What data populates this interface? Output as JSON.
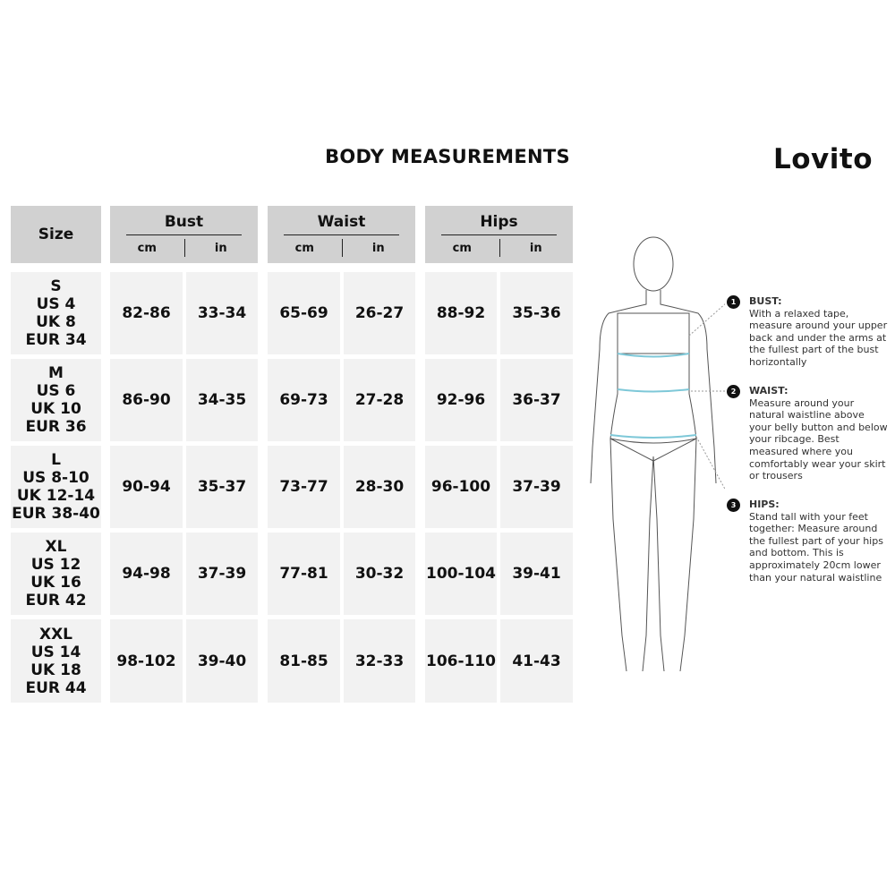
{
  "title": "BODY MEASUREMENTS",
  "brand": "Lovito",
  "table": {
    "size_header": "Size",
    "groups": [
      {
        "label": "Bust",
        "units": [
          "cm",
          "in"
        ]
      },
      {
        "label": "Waist",
        "units": [
          "cm",
          "in"
        ]
      },
      {
        "label": "Hips",
        "units": [
          "cm",
          "in"
        ]
      }
    ],
    "rows": [
      {
        "size": [
          "S",
          "US 4",
          "UK 8",
          "EUR 34"
        ],
        "values": [
          "82-86",
          "33-34",
          "65-69",
          "26-27",
          "88-92",
          "35-36"
        ]
      },
      {
        "size": [
          "M",
          "US 6",
          "UK 10",
          "EUR 36"
        ],
        "values": [
          "86-90",
          "34-35",
          "69-73",
          "27-28",
          "92-96",
          "36-37"
        ]
      },
      {
        "size": [
          "L",
          "US 8-10",
          "UK 12-14",
          "EUR 38-40"
        ],
        "values": [
          "90-94",
          "35-37",
          "73-77",
          "28-30",
          "96-100",
          "37-39"
        ]
      },
      {
        "size": [
          "XL",
          "US 12",
          "UK 16",
          "EUR 42"
        ],
        "values": [
          "94-98",
          "37-39",
          "77-81",
          "30-32",
          "100-104",
          "39-41"
        ]
      },
      {
        "size": [
          "XXL",
          "US 14",
          "UK 18",
          "EUR 44"
        ],
        "values": [
          "98-102",
          "39-40",
          "81-85",
          "32-33",
          "106-110",
          "41-43"
        ]
      }
    ]
  },
  "notes": [
    {
      "num": "1",
      "heading": "BUST:",
      "text": "With a relaxed tape, measure around your upper back and under the arms at the fullest part of the bust horizontally"
    },
    {
      "num": "2",
      "heading": "WAIST:",
      "text": "Measure around your natural waistline above your belly button and below your ribcage. Best measured where you comfortably wear your skirt or trousers"
    },
    {
      "num": "3",
      "heading": "HIPS:",
      "text": "Stand tall with your feet together: Measure around the fullest part of your hips and bottom. This is approximately 20cm lower than your natural waistline"
    }
  ],
  "colors": {
    "header_bg": "#d1d1d1",
    "cell_bg": "#f2f2f2",
    "tape": "#7ec8d8"
  }
}
